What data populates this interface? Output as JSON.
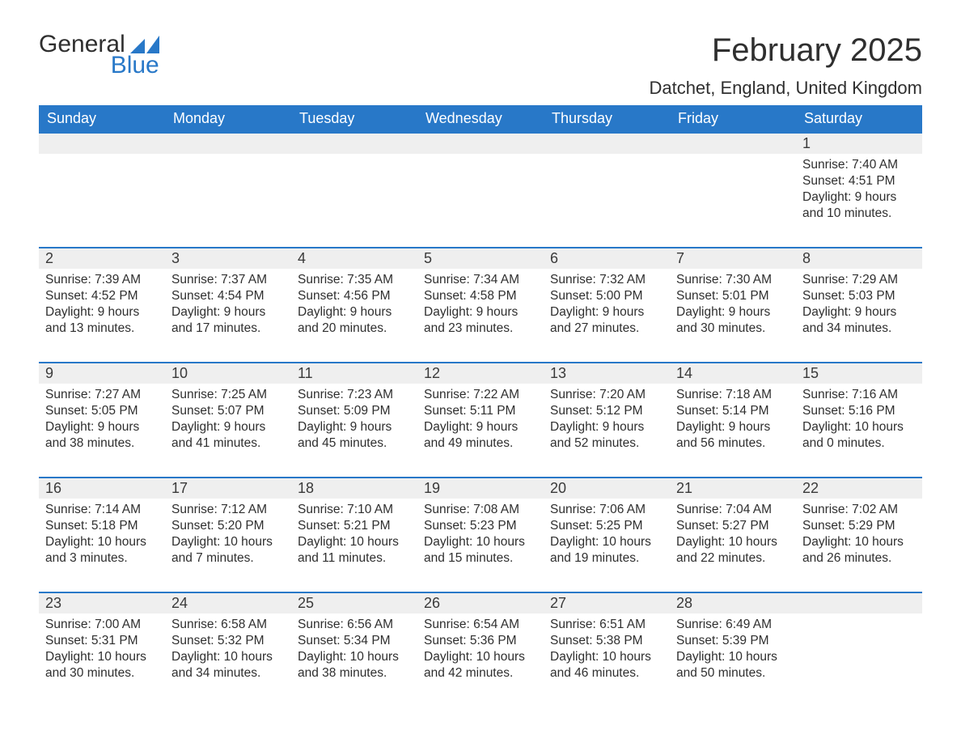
{
  "brand": {
    "name_part1": "General",
    "name_part2": "Blue",
    "accent_color": "#2878c8"
  },
  "title": "February 2025",
  "location": "Datchet, England, United Kingdom",
  "theme": {
    "header_bg": "#2878c8",
    "header_fg": "#ffffff",
    "daybar_bg": "#efefef",
    "daybar_border": "#2878c8",
    "page_bg": "#ffffff",
    "text_color": "#2f2f2f"
  },
  "weekdays": [
    "Sunday",
    "Monday",
    "Tuesday",
    "Wednesday",
    "Thursday",
    "Friday",
    "Saturday"
  ],
  "weeks": [
    [
      null,
      null,
      null,
      null,
      null,
      null,
      {
        "n": "1",
        "sunrise": "7:40 AM",
        "sunset": "4:51 PM",
        "daylight": "9 hours and 10 minutes."
      }
    ],
    [
      {
        "n": "2",
        "sunrise": "7:39 AM",
        "sunset": "4:52 PM",
        "daylight": "9 hours and 13 minutes."
      },
      {
        "n": "3",
        "sunrise": "7:37 AM",
        "sunset": "4:54 PM",
        "daylight": "9 hours and 17 minutes."
      },
      {
        "n": "4",
        "sunrise": "7:35 AM",
        "sunset": "4:56 PM",
        "daylight": "9 hours and 20 minutes."
      },
      {
        "n": "5",
        "sunrise": "7:34 AM",
        "sunset": "4:58 PM",
        "daylight": "9 hours and 23 minutes."
      },
      {
        "n": "6",
        "sunrise": "7:32 AM",
        "sunset": "5:00 PM",
        "daylight": "9 hours and 27 minutes."
      },
      {
        "n": "7",
        "sunrise": "7:30 AM",
        "sunset": "5:01 PM",
        "daylight": "9 hours and 30 minutes."
      },
      {
        "n": "8",
        "sunrise": "7:29 AM",
        "sunset": "5:03 PM",
        "daylight": "9 hours and 34 minutes."
      }
    ],
    [
      {
        "n": "9",
        "sunrise": "7:27 AM",
        "sunset": "5:05 PM",
        "daylight": "9 hours and 38 minutes."
      },
      {
        "n": "10",
        "sunrise": "7:25 AM",
        "sunset": "5:07 PM",
        "daylight": "9 hours and 41 minutes."
      },
      {
        "n": "11",
        "sunrise": "7:23 AM",
        "sunset": "5:09 PM",
        "daylight": "9 hours and 45 minutes."
      },
      {
        "n": "12",
        "sunrise": "7:22 AM",
        "sunset": "5:11 PM",
        "daylight": "9 hours and 49 minutes."
      },
      {
        "n": "13",
        "sunrise": "7:20 AM",
        "sunset": "5:12 PM",
        "daylight": "9 hours and 52 minutes."
      },
      {
        "n": "14",
        "sunrise": "7:18 AM",
        "sunset": "5:14 PM",
        "daylight": "9 hours and 56 minutes."
      },
      {
        "n": "15",
        "sunrise": "7:16 AM",
        "sunset": "5:16 PM",
        "daylight": "10 hours and 0 minutes."
      }
    ],
    [
      {
        "n": "16",
        "sunrise": "7:14 AM",
        "sunset": "5:18 PM",
        "daylight": "10 hours and 3 minutes."
      },
      {
        "n": "17",
        "sunrise": "7:12 AM",
        "sunset": "5:20 PM",
        "daylight": "10 hours and 7 minutes."
      },
      {
        "n": "18",
        "sunrise": "7:10 AM",
        "sunset": "5:21 PM",
        "daylight": "10 hours and 11 minutes."
      },
      {
        "n": "19",
        "sunrise": "7:08 AM",
        "sunset": "5:23 PM",
        "daylight": "10 hours and 15 minutes."
      },
      {
        "n": "20",
        "sunrise": "7:06 AM",
        "sunset": "5:25 PM",
        "daylight": "10 hours and 19 minutes."
      },
      {
        "n": "21",
        "sunrise": "7:04 AM",
        "sunset": "5:27 PM",
        "daylight": "10 hours and 22 minutes."
      },
      {
        "n": "22",
        "sunrise": "7:02 AM",
        "sunset": "5:29 PM",
        "daylight": "10 hours and 26 minutes."
      }
    ],
    [
      {
        "n": "23",
        "sunrise": "7:00 AM",
        "sunset": "5:31 PM",
        "daylight": "10 hours and 30 minutes."
      },
      {
        "n": "24",
        "sunrise": "6:58 AM",
        "sunset": "5:32 PM",
        "daylight": "10 hours and 34 minutes."
      },
      {
        "n": "25",
        "sunrise": "6:56 AM",
        "sunset": "5:34 PM",
        "daylight": "10 hours and 38 minutes."
      },
      {
        "n": "26",
        "sunrise": "6:54 AM",
        "sunset": "5:36 PM",
        "daylight": "10 hours and 42 minutes."
      },
      {
        "n": "27",
        "sunrise": "6:51 AM",
        "sunset": "5:38 PM",
        "daylight": "10 hours and 46 minutes."
      },
      {
        "n": "28",
        "sunrise": "6:49 AM",
        "sunset": "5:39 PM",
        "daylight": "10 hours and 50 minutes."
      },
      null
    ]
  ],
  "labels": {
    "sunrise": "Sunrise:",
    "sunset": "Sunset:",
    "daylight": "Daylight:"
  }
}
